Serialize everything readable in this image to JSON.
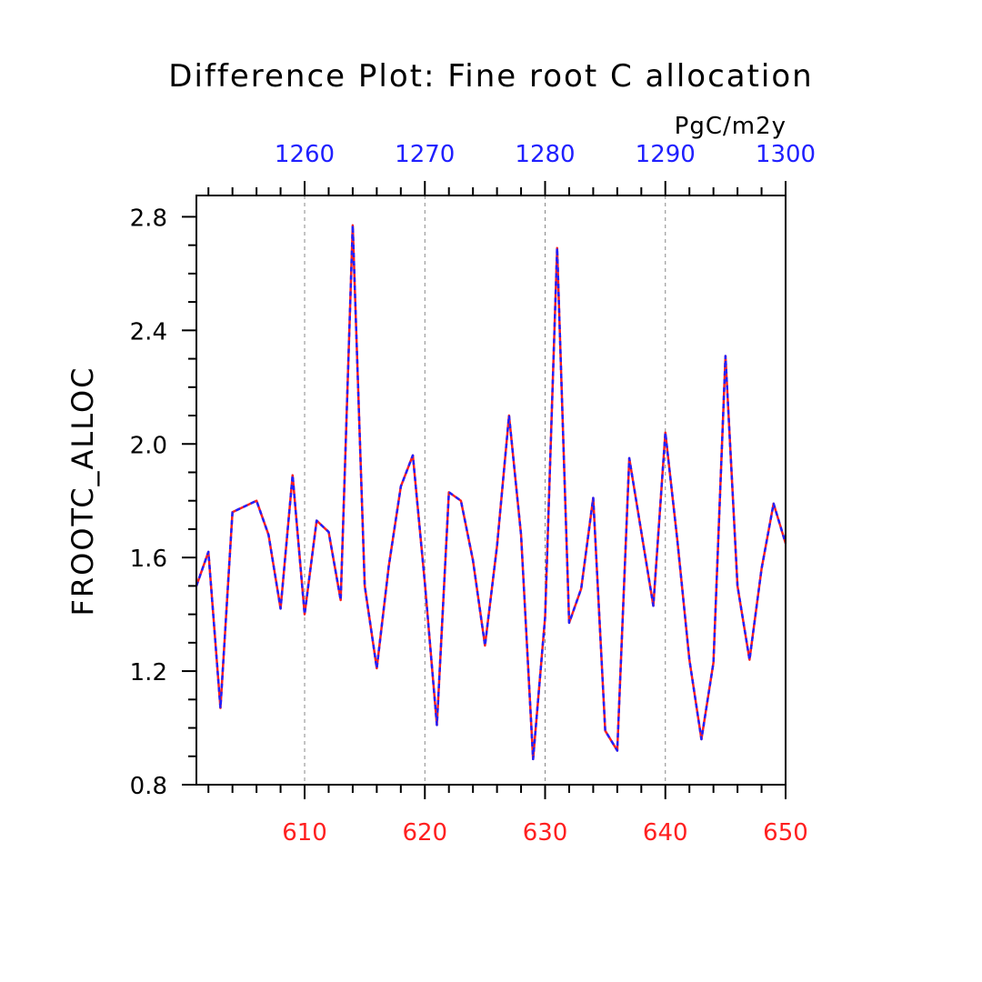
{
  "chart_data": {
    "type": "line",
    "title": "Difference Plot: Fine root C allocation",
    "units": "PgC/m2y",
    "ylabel": "FROOTC_ALLOC",
    "xlabel": "",
    "xlim": [
      601,
      650
    ],
    "ylim": [
      0.8,
      2.875
    ],
    "grid": "vertical dashed at major ticks",
    "bottom_axis": {
      "color": "#ff2020",
      "ticks": [
        "610",
        "620",
        "630",
        "640",
        "650"
      ],
      "values": [
        610,
        620,
        630,
        640,
        650
      ]
    },
    "top_axis": {
      "color": "#2020ff",
      "ticks": [
        "1260",
        "1270",
        "1280",
        "1290",
        "1300"
      ],
      "values": [
        1260,
        1270,
        1280,
        1290,
        1300
      ]
    },
    "y_ticks": [
      "0.8",
      "1.2",
      "1.6",
      "2.0",
      "2.4",
      "2.8"
    ],
    "y_tick_values": [
      0.8,
      1.2,
      1.6,
      2.0,
      2.4,
      2.8
    ],
    "x": [
      601,
      602,
      603,
      604,
      605,
      606,
      607,
      608,
      609,
      610,
      611,
      612,
      613,
      614,
      615,
      616,
      617,
      618,
      619,
      620,
      621,
      622,
      623,
      624,
      625,
      626,
      627,
      628,
      629,
      630,
      631,
      632,
      633,
      634,
      635,
      636,
      637,
      638,
      639,
      640,
      641,
      642,
      643,
      644,
      645,
      646,
      647,
      648,
      649,
      650
    ],
    "series": [
      {
        "color": "#ff2020",
        "style": "solid",
        "values": [
          1.5,
          1.62,
          1.07,
          1.76,
          1.78,
          1.8,
          1.68,
          1.42,
          1.89,
          1.4,
          1.73,
          1.69,
          1.45,
          2.77,
          1.5,
          1.21,
          1.57,
          1.85,
          1.96,
          1.51,
          1.01,
          1.83,
          1.8,
          1.59,
          1.29,
          1.64,
          2.1,
          1.68,
          0.89,
          1.39,
          2.69,
          1.37,
          1.49,
          1.81,
          0.99,
          0.92,
          1.95,
          1.69,
          1.43,
          2.04,
          1.66,
          1.24,
          0.96,
          1.23,
          2.31,
          1.5,
          1.24,
          1.56,
          1.79,
          1.65
        ]
      },
      {
        "color": "#2020ff",
        "style": "dashed",
        "values": [
          1.5,
          1.62,
          1.07,
          1.76,
          1.78,
          1.8,
          1.68,
          1.42,
          1.89,
          1.4,
          1.73,
          1.69,
          1.45,
          2.77,
          1.5,
          1.21,
          1.57,
          1.85,
          1.96,
          1.51,
          1.01,
          1.83,
          1.8,
          1.59,
          1.29,
          1.64,
          2.1,
          1.68,
          0.89,
          1.39,
          2.69,
          1.37,
          1.49,
          1.81,
          0.99,
          0.92,
          1.95,
          1.69,
          1.43,
          2.04,
          1.66,
          1.24,
          0.96,
          1.23,
          2.31,
          1.5,
          1.24,
          1.56,
          1.79,
          1.65
        ]
      }
    ]
  }
}
